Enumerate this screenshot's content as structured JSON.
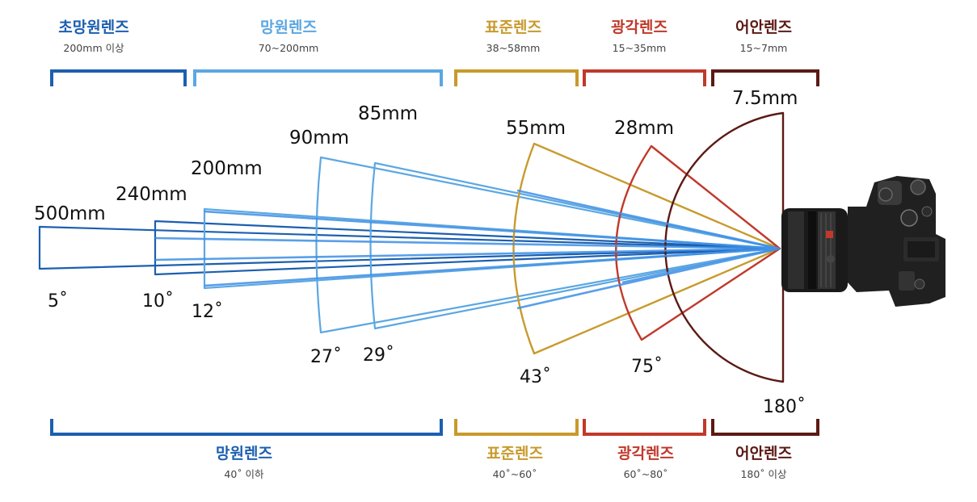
{
  "colors": {
    "super_tele": "#1c5fb0",
    "tele": "#5ca7e2",
    "standard": "#c89a2c",
    "wide": "#c0392b",
    "fisheye": "#5b1a14"
  },
  "top_categories": [
    {
      "title": "초망원렌즈",
      "sub": "200mm 이상",
      "color_key": "super_tele"
    },
    {
      "title": "망원렌즈",
      "sub": "70~200mm",
      "color_key": "tele"
    },
    {
      "title": "표준렌즈",
      "sub": "38~58mm",
      "color_key": "standard"
    },
    {
      "title": "광각렌즈",
      "sub": "15~35mm",
      "color_key": "wide"
    },
    {
      "title": "어안렌즈",
      "sub": "15~7mm",
      "color_key": "fisheye"
    }
  ],
  "bottom_categories": [
    {
      "title": "망원렌즈",
      "sub": "40˚ 이하",
      "color_key": "super_tele"
    },
    {
      "title": "표준렌즈",
      "sub": "40˚~60˚",
      "color_key": "standard"
    },
    {
      "title": "광각렌즈",
      "sub": "60˚~80˚",
      "color_key": "wide"
    },
    {
      "title": "어안렌즈",
      "sub": "180˚ 이상",
      "color_key": "fisheye"
    }
  ],
  "lenses": [
    {
      "focal": "500mm",
      "angle": "5˚",
      "color_key": "super_tele"
    },
    {
      "focal": "240mm",
      "angle": "10˚",
      "color_key": "super_tele"
    },
    {
      "focal": "200mm",
      "angle": "12˚",
      "color_key": "tele"
    },
    {
      "focal": "90mm",
      "angle": "27˚",
      "color_key": "tele"
    },
    {
      "focal": "85mm",
      "angle": "29˚",
      "color_key": "tele"
    },
    {
      "focal": "55mm",
      "angle": "43˚",
      "color_key": "standard"
    },
    {
      "focal": "28mm",
      "angle": "75˚",
      "color_key": "wide"
    },
    {
      "focal": "7.5mm",
      "angle": "180˚",
      "color_key": "fisheye"
    }
  ],
  "camera": {
    "icon": "camera-icon"
  }
}
